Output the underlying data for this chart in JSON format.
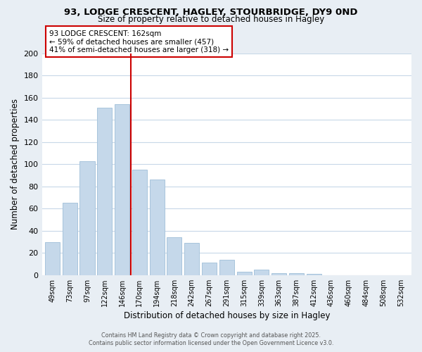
{
  "title": "93, LODGE CRESCENT, HAGLEY, STOURBRIDGE, DY9 0ND",
  "subtitle": "Size of property relative to detached houses in Hagley",
  "xlabel": "Distribution of detached houses by size in Hagley",
  "ylabel": "Number of detached properties",
  "bar_labels": [
    "49sqm",
    "73sqm",
    "97sqm",
    "122sqm",
    "146sqm",
    "170sqm",
    "194sqm",
    "218sqm",
    "242sqm",
    "267sqm",
    "291sqm",
    "315sqm",
    "339sqm",
    "363sqm",
    "387sqm",
    "412sqm",
    "436sqm",
    "460sqm",
    "484sqm",
    "508sqm",
    "532sqm"
  ],
  "bar_values": [
    30,
    65,
    103,
    151,
    154,
    95,
    86,
    34,
    29,
    11,
    14,
    3,
    5,
    2,
    2,
    1,
    0,
    0,
    0,
    0,
    0
  ],
  "bar_color": "#c5d8ea",
  "bar_edge_color": "#a8c4dc",
  "vline_color": "#cc0000",
  "ylim": [
    0,
    200
  ],
  "yticks": [
    0,
    20,
    40,
    60,
    80,
    100,
    120,
    140,
    160,
    180,
    200
  ],
  "annotation_line1": "93 LODGE CRESCENT: 162sqm",
  "annotation_line2": "← 59% of detached houses are smaller (457)",
  "annotation_line3": "41% of semi-detached houses are larger (318) →",
  "footer1": "Contains HM Land Registry data © Crown copyright and database right 2025.",
  "footer2": "Contains public sector information licensed under the Open Government Licence v3.0.",
  "bg_color": "#e8eef4",
  "plot_bg_color": "#ffffff",
  "grid_color": "#c8d8e8"
}
